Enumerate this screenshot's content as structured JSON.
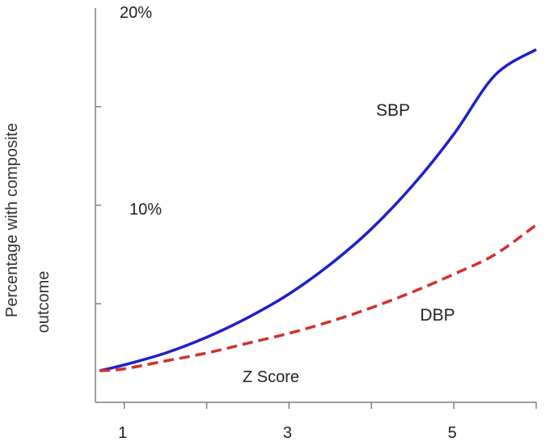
{
  "chart_data": {
    "type": "line",
    "title": "",
    "xlabel": "Z Score",
    "ylabel_lines": [
      "Percentage with composite",
      "outcome"
    ],
    "x_tick_labels": [
      {
        "x": 1,
        "label": "1"
      },
      {
        "x": 3,
        "label": "3"
      },
      {
        "x": 5,
        "label": "5"
      }
    ],
    "x_tick_positions": [
      1,
      2,
      3,
      4,
      5,
      6
    ],
    "y_tick_labels": [
      {
        "y": 10,
        "label": "10%"
      },
      {
        "y": 20,
        "label": "20%"
      }
    ],
    "y_tick_positions": [
      5,
      10,
      15
    ],
    "xlim": [
      0.65,
      6.0
    ],
    "ylim": [
      0,
      20
    ],
    "grid": false,
    "legend": "none",
    "series": [
      {
        "name": "SBP",
        "color": "#1f1fcc",
        "style": "solid",
        "x": [
          0.7,
          1.0,
          1.5,
          2.0,
          2.5,
          3.0,
          3.5,
          4.0,
          4.5,
          5.0,
          5.5,
          6.0
        ],
        "values": [
          1.6,
          1.9,
          2.5,
          3.3,
          4.3,
          5.5,
          7.0,
          8.8,
          11.0,
          13.6,
          16.6,
          17.9
        ]
      },
      {
        "name": "DBP",
        "color": "#d62e2e",
        "style": "dashed",
        "x": [
          0.7,
          1.0,
          1.5,
          2.0,
          2.5,
          3.0,
          3.5,
          4.0,
          4.5,
          5.0,
          5.5,
          6.0
        ],
        "values": [
          1.6,
          1.7,
          2.1,
          2.5,
          3.0,
          3.5,
          4.1,
          4.8,
          5.6,
          6.5,
          7.5,
          9.0
        ]
      }
    ],
    "annotations": [
      {
        "text": "SBP",
        "color": "#5b7fc7"
      },
      {
        "text": "DBP",
        "color": "#d62e2e"
      }
    ]
  }
}
